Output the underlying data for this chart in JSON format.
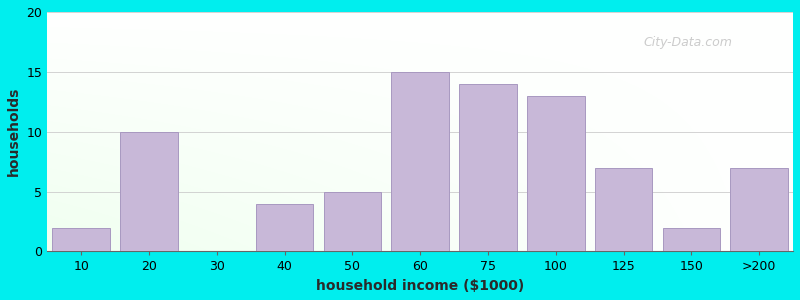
{
  "xlabel": "household income ($1000)",
  "ylabel": "households",
  "bar_labels": [
    "10",
    "20",
    "30",
    "40",
    "50",
    "60",
    "75",
    "100",
    "125",
    "150",
    ">200"
  ],
  "bar_values": [
    2,
    10,
    0,
    4,
    5,
    15,
    14,
    13,
    7,
    2,
    7
  ],
  "bar_color": "#C8B8D8",
  "bar_edge_color": "#A898C0",
  "background_color": "#00EEEE",
  "ylim": [
    0,
    20
  ],
  "yticks": [
    0,
    5,
    10,
    15,
    20
  ],
  "title_fontsize": 15,
  "subtitle_fontsize": 12,
  "subtitle_color": "#996633",
  "axis_label_fontsize": 10,
  "tick_fontsize": 9,
  "watermark": "City-Data.com"
}
